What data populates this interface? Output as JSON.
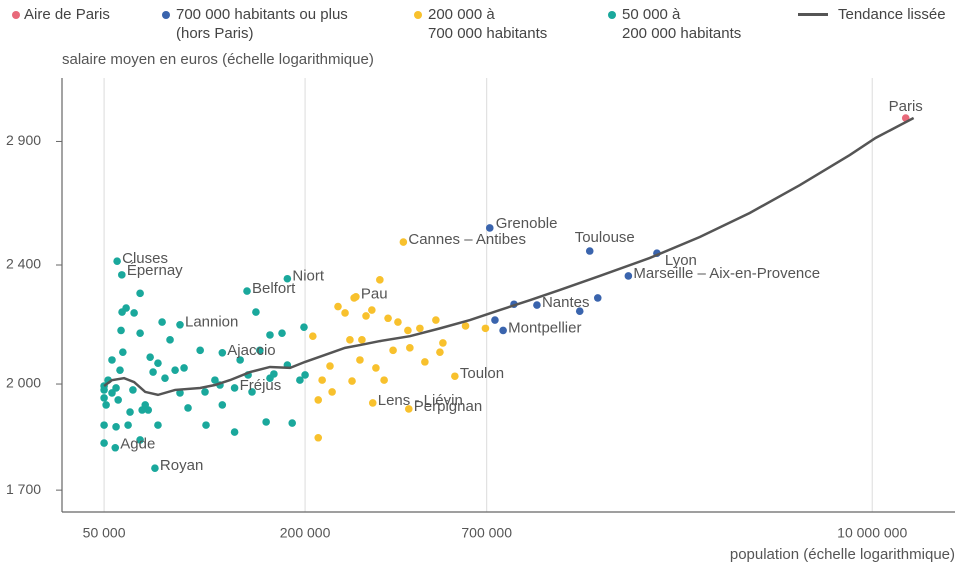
{
  "chart_data": {
    "type": "scatter",
    "ylabel": "salaire moyen en euros (échelle logarithmique)",
    "xlabel": "population (échelle logarithmique)",
    "xlog": true,
    "ylog": true,
    "grid": true,
    "xlim": [
      37400,
      17700000
    ],
    "ylim": [
      1644,
      3196
    ],
    "xticks": [
      {
        "value": 50000,
        "label": "50 000"
      },
      {
        "value": 200000,
        "label": "200 000"
      },
      {
        "value": 700000,
        "label": "700 000"
      },
      {
        "value": 10000000,
        "label": "10 000 000"
      }
    ],
    "yticks": [
      {
        "value": 1700,
        "label": "1 700"
      },
      {
        "value": 2000,
        "label": "2 000"
      },
      {
        "value": 2400,
        "label": "2 400"
      },
      {
        "value": 2900,
        "label": "2 900"
      }
    ],
    "series": [
      {
        "name": "Aire de Paris",
        "type": "scatter",
        "color": "#e8697a",
        "x": [
          12600000
        ],
        "y": [
          3006
        ],
        "labels": [
          "Paris"
        ]
      },
      {
        "name": "700 000 habitants ou plus\n(hors Paris)",
        "type": "scatter",
        "color": "#3a64ad",
        "x": [
          715000,
          1425000,
          2265000,
          1860000,
          990000,
          784000,
          845000,
          741000,
          1330000,
          1506000
        ],
        "y": [
          2540,
          2452,
          2444,
          2360,
          2257,
          2171,
          2260,
          2206,
          2236,
          2282
        ],
        "labels": [
          "Grenoble",
          "Toulouse",
          "Lyon",
          "Marseille – Aix-en-Provence",
          "Nantes",
          "Montpellier",
          null,
          null,
          null,
          null
        ]
      },
      {
        "name": "200 000 à\n700 000 habitants",
        "type": "scatter",
        "color": "#f8c12d",
        "x": [
          394000,
          284000,
          562000,
          319000,
          409000,
          211000,
          219000,
          219000,
          225000,
          237500,
          251000,
          263500,
          272500,
          276500,
          280500,
          292000,
          304500,
          317000,
          326000,
          335000,
          345000,
          354500,
          367000,
          379500,
          406500,
          412000,
          441500,
          457000,
          493000,
          507000,
          517500,
          605000,
          694000,
          241000,
          296000
        ],
        "y": [
          2486,
          2286,
          2024,
          1943,
          1925,
          2152,
          1952,
          1842,
          2012,
          2056,
          2252,
          2230,
          2140,
          2009,
          2282,
          2075,
          2220,
          2240,
          2050,
          2346,
          2012,
          2212,
          2106,
          2199,
          2171,
          2114,
          2178,
          2069,
          2206,
          2100,
          2130,
          2186,
          2178,
          1976,
          2140
        ],
        "labels": [
          "Cannes – Antibes",
          "Pau",
          "Toulon",
          "Lens - Liévin",
          "Perpignan",
          null,
          null,
          null,
          null,
          null,
          null,
          null,
          null,
          null,
          null,
          null,
          null,
          null,
          null,
          null,
          null,
          null,
          null,
          null,
          null,
          null,
          null,
          null,
          null,
          null,
          null,
          null,
          null,
          null,
          null
        ]
      },
      {
        "name": "50 000 à\n200 000 habitants",
        "type": "scatter",
        "color": "#1aa89c",
        "x": [
          54700,
          56500,
          134000,
          177000,
          84400,
          113000,
          123000,
          54000,
          71000,
          50000,
          50000,
          50000,
          50700,
          50000,
          50000,
          51400,
          52800,
          54300,
          55100,
          54300,
          55800,
          56900,
          56600,
          56200,
          58200,
          59800,
          61000,
          61500,
          64100,
          64100,
          65000,
          66400,
          67800,
          68700,
          70100,
          72500,
          74600,
          76100,
          78800,
          81600,
          84400,
          86800,
          89200,
          97000,
          100300,
          107400,
          113000,
          123000,
          127800,
          135000,
          138700,
          142500,
          146400,
          152900,
          157000,
          161300,
          170600,
          177000,
          183000,
          193000,
          198500,
          200000,
          64100,
          59000,
          52800,
          72500,
          101000,
          111200,
          157000
        ],
        "y": [
          2414,
          2364,
          2306,
          2350,
          2190,
          2098,
          1988,
          1814,
          1758,
          1994,
          1982,
          1958,
          1937,
          1878,
          1827,
          2012,
          1973,
          1988,
          1952,
          1873,
          2043,
          2100,
          2233,
          2171,
          2247,
          1916,
          1982,
          2230,
          2298,
          2162,
          1922,
          1937,
          1922,
          2084,
          2037,
          2065,
          2199,
          2018,
          2140,
          2043,
          1973,
          2050,
          1928,
          2106,
          1976,
          2012,
          1937,
          1858,
          2075,
          2028,
          1976,
          2233,
          2106,
          1887,
          2018,
          2031,
          2162,
          2059,
          1884,
          2012,
          2182,
          2028,
          1836,
          1878,
          2075,
          1878,
          1878,
          1997,
          2156
        ],
        "labels": [
          "Cluses",
          "Épernay",
          "Belfort",
          "Niort",
          "Lannion",
          "Ajaccio",
          "Fréjus",
          "Agde",
          "Royan",
          null,
          null,
          null,
          null,
          null,
          null,
          null,
          null,
          null,
          null,
          null,
          null,
          null,
          null,
          null,
          null,
          null,
          null,
          null,
          null,
          null,
          null,
          null,
          null,
          null,
          null,
          null,
          null,
          null,
          null,
          null,
          null,
          null,
          null,
          null,
          null,
          null,
          null,
          null,
          null,
          null,
          null,
          null,
          null,
          null,
          null,
          null,
          null,
          null,
          null,
          null,
          null,
          null,
          null,
          null,
          null,
          null,
          null,
          null,
          null
        ]
      },
      {
        "name": "Tendance lissée",
        "type": "line",
        "color": "#555555",
        "x": [
          50000,
          52800,
          57400,
          61500,
          66400,
          72500,
          81600,
          97000,
          107400,
          119200,
          136800,
          157000,
          180300,
          200000,
          229400,
          263500,
          292000,
          335000,
          412000,
          507000,
          623500,
          766000,
          943000,
          1160000,
          1527000,
          2157000,
          3044000,
          4296000,
          6064000,
          8563000,
          10245000,
          13306000
        ],
        "y": [
          1994,
          2012,
          2018,
          2006,
          1976,
          1967,
          1982,
          1988,
          1997,
          2012,
          2037,
          2053,
          2050,
          2069,
          2091,
          2114,
          2123,
          2136,
          2152,
          2178,
          2206,
          2240,
          2274,
          2310,
          2360,
          2426,
          2505,
          2599,
          2712,
          2840,
          2916,
          3006
        ]
      }
    ]
  }
}
